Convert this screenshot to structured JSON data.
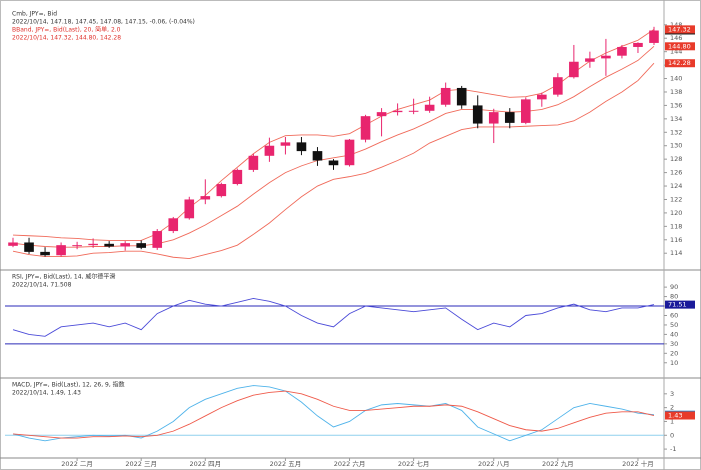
{
  "chart_data": [
    {
      "type": "candlestick",
      "title": "Cmb, JPY=, Bid",
      "subtitle": "2022/10/14, 147.18, 147.45, 147.08, 147.15, -0.06, (-0.04%)",
      "annotations": [
        "BBand, JPY=, Bid(Last), 20, 简单, 2.0",
        "2022/10/14, 147.32, 144.80, 142.28"
      ],
      "categories": [
        null,
        null,
        null,
        null,
        "2022 二月",
        null,
        null,
        null,
        "2022 三月",
        null,
        null,
        null,
        "2022 四月",
        null,
        null,
        null,
        null,
        "2022 五月",
        null,
        null,
        null,
        "2022 六月",
        null,
        null,
        null,
        "2022 七月",
        null,
        null,
        null,
        null,
        "2022 八月",
        null,
        null,
        null,
        "2022 九月",
        null,
        null,
        null,
        null,
        "2022 十月",
        null
      ],
      "open": [
        115.1,
        115.6,
        114.2,
        113.7,
        115.2,
        115.2,
        115.4,
        115.0,
        115.5,
        114.8,
        117.3,
        119.2,
        122.0,
        122.5,
        124.3,
        126.4,
        128.5,
        130.0,
        130.5,
        129.2,
        127.8,
        127.1,
        130.9,
        134.4,
        135.0,
        135.2,
        135.2,
        136.1,
        138.6,
        136.0,
        133.3,
        135.0,
        133.4,
        136.9,
        137.6,
        140.2,
        142.5,
        143.0,
        143.4,
        144.7,
        145.3
      ],
      "high": [
        116.3,
        116.3,
        114.9,
        115.6,
        115.7,
        116.2,
        115.8,
        115.8,
        115.9,
        117.6,
        119.4,
        122.4,
        125.0,
        124.5,
        126.6,
        128.8,
        131.2,
        131.3,
        131.3,
        129.8,
        128.0,
        131.0,
        134.6,
        135.6,
        136.3,
        137.0,
        137.3,
        139.4,
        138.9,
        137.5,
        135.5,
        135.6,
        137.2,
        137.9,
        140.8,
        145.0,
        144.0,
        145.9,
        145.0,
        145.4,
        147.7
      ],
      "low": [
        114.9,
        113.9,
        113.5,
        113.5,
        114.6,
        114.8,
        114.8,
        114.4,
        114.6,
        114.5,
        117.0,
        119.0,
        121.3,
        122.3,
        124.1,
        126.1,
        127.6,
        128.7,
        128.6,
        127.0,
        126.4,
        126.9,
        130.5,
        131.4,
        134.5,
        134.7,
        134.9,
        135.8,
        135.5,
        132.6,
        130.4,
        132.6,
        133.2,
        135.8,
        137.3,
        140.0,
        141.6,
        140.4,
        143.0,
        143.8,
        145.0
      ],
      "close": [
        115.6,
        114.2,
        113.7,
        115.2,
        115.2,
        115.4,
        115.0,
        115.5,
        114.8,
        117.3,
        119.2,
        122.0,
        122.5,
        124.3,
        126.4,
        128.5,
        130.0,
        130.5,
        129.2,
        127.8,
        127.1,
        130.9,
        134.4,
        135.0,
        135.2,
        135.2,
        136.1,
        138.6,
        136.0,
        133.3,
        135.0,
        133.4,
        136.9,
        137.6,
        140.2,
        142.5,
        143.0,
        143.4,
        144.7,
        145.3,
        147.15
      ],
      "up_color": "#e8256e",
      "down_color": "#111111",
      "bands": {
        "color": "#f06a5a",
        "upper": [
          116.7,
          116.6,
          116.5,
          116.3,
          116.2,
          116.0,
          115.9,
          115.9,
          115.9,
          116.9,
          118.6,
          120.8,
          122.6,
          124.8,
          126.8,
          128.8,
          130.5,
          131.5,
          131.6,
          131.6,
          131.4,
          131.8,
          133.1,
          134.4,
          135.4,
          136.1,
          136.8,
          138.2,
          138.4,
          138.0,
          137.6,
          137.2,
          137.3,
          137.8,
          139.1,
          140.9,
          142.6,
          143.8,
          144.8,
          145.7,
          147.32
        ],
        "middle": [
          115.5,
          115.2,
          115.0,
          114.9,
          114.9,
          115.0,
          115.0,
          115.1,
          115.1,
          115.4,
          116.0,
          117.0,
          118.2,
          119.6,
          121.0,
          122.8,
          124.5,
          126.0,
          127.0,
          127.8,
          128.2,
          128.6,
          129.5,
          130.6,
          131.6,
          132.5,
          133.6,
          134.8,
          135.4,
          135.4,
          135.2,
          135.0,
          135.1,
          135.4,
          136.1,
          137.3,
          138.8,
          140.2,
          141.4,
          142.7,
          144.8
        ],
        "lower": [
          114.3,
          113.8,
          113.5,
          113.5,
          113.6,
          114.0,
          114.1,
          114.3,
          114.3,
          113.9,
          113.4,
          113.2,
          113.8,
          114.4,
          115.2,
          116.8,
          118.5,
          120.5,
          122.4,
          124.0,
          125.0,
          125.4,
          125.9,
          126.8,
          127.8,
          128.9,
          130.4,
          131.4,
          132.4,
          132.8,
          132.8,
          132.8,
          132.9,
          133.0,
          133.1,
          133.7,
          135.0,
          136.6,
          138.0,
          139.7,
          142.28
        ]
      },
      "tags": [
        {
          "value": 147.15,
          "label": "147.15",
          "color": "#222222"
        },
        {
          "value": 147.32,
          "label": "147.32",
          "color": "#e83a2a"
        },
        {
          "value": 144.8,
          "label": "144.80",
          "color": "#e83a2a"
        },
        {
          "value": 142.28,
          "label": "142.28",
          "color": "#e83a2a"
        }
      ],
      "ylim": [
        111.8,
        150.5
      ],
      "yticks": [
        114,
        116,
        118,
        120,
        122,
        124,
        126,
        128,
        130,
        132,
        134,
        136,
        138,
        140,
        142,
        144,
        146,
        148
      ]
    },
    {
      "type": "line",
      "title": "RSI, JPY=, Bid(Last), 14, 威尔德平滑",
      "subtitle": "2022/10/14, 71.508",
      "series": [
        {
          "color": "#4a4ad8",
          "values": [
            45,
            40,
            38,
            48,
            50,
            52,
            48,
            52,
            45,
            62,
            70,
            76,
            72,
            70,
            74,
            78,
            75,
            70,
            60,
            52,
            48,
            62,
            70,
            68,
            66,
            64,
            66,
            68,
            56,
            45,
            52,
            48,
            60,
            62,
            68,
            72,
            66,
            64,
            68,
            68,
            71.508
          ]
        }
      ],
      "levels": [
        70,
        30
      ],
      "level_color": "#2a2ab8",
      "tags": [
        {
          "value": 71.508,
          "label": "71.51",
          "color": "#1a1a9a"
        }
      ],
      "ylim": [
        -4,
        106
      ],
      "yticks": [
        10,
        20,
        30,
        40,
        50,
        60,
        70,
        80,
        90
      ]
    },
    {
      "type": "line",
      "title": "MACD, JPY=, Bid(Last), 12, 26, 9, 指数",
      "subtitle": "2022/10/14, 1.49, 1.43",
      "series": [
        {
          "color": "#4fb3ea",
          "values": [
            0.1,
            -0.2,
            -0.4,
            -0.2,
            -0.1,
            0,
            -0.05,
            0,
            -0.2,
            0.3,
            1.0,
            2.0,
            2.6,
            3.0,
            3.4,
            3.6,
            3.5,
            3.2,
            2.4,
            1.4,
            0.6,
            1.0,
            1.8,
            2.2,
            2.3,
            2.2,
            2.1,
            2.3,
            1.8,
            0.6,
            0.1,
            -0.4,
            0,
            0.4,
            1.2,
            2.0,
            2.3,
            2.1,
            1.9,
            1.6,
            1.49
          ]
        },
        {
          "color": "#ef5a4a",
          "values": [
            0.1,
            0,
            -0.1,
            -0.2,
            -0.2,
            -0.1,
            -0.1,
            -0.05,
            -0.1,
            0,
            0.3,
            0.8,
            1.4,
            2.0,
            2.5,
            2.9,
            3.1,
            3.2,
            3.0,
            2.6,
            2.1,
            1.8,
            1.8,
            1.9,
            2.0,
            2.1,
            2.1,
            2.2,
            2.1,
            1.7,
            1.2,
            0.7,
            0.4,
            0.3,
            0.5,
            0.9,
            1.3,
            1.6,
            1.7,
            1.7,
            1.43
          ]
        }
      ],
      "levels": [
        0
      ],
      "level_color": "#8fd0ee",
      "tags": [
        {
          "value": 1.49,
          "label": "1.49",
          "color": "#1f7fc8"
        },
        {
          "value": 1.43,
          "label": "1.43",
          "color": "#e83a2a"
        }
      ],
      "ylim": [
        -1.5,
        4
      ],
      "yticks": [
        -1,
        0,
        1,
        2,
        3
      ]
    }
  ]
}
